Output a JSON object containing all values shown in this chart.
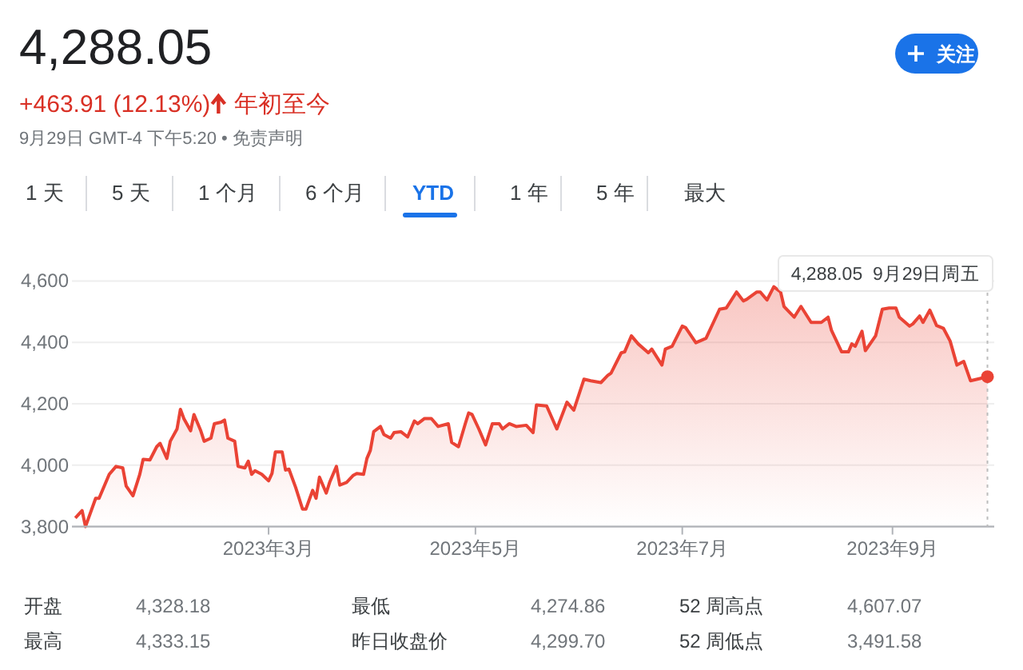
{
  "chart_data": {
    "type": "area",
    "title": "4,288.05",
    "subtitle": "+463.91 (12.13%)",
    "annotations": [
      "年初至今",
      "9月29日 GMT-4 下午5:20 • 免责声明",
      "关注",
      "1 天",
      "5 天",
      "1 个月",
      "6 个月",
      "YTD",
      "1 年",
      "5 年",
      "最大",
      "4,288.05  9月29日周五",
      "开盘",
      "4,328.18",
      "最低",
      "4,274.86",
      "52 周高点",
      "4,607.07",
      "最高",
      "4,333.15",
      "昨日收盘价",
      "4,299.70",
      "52 周低点",
      "3,491.58"
    ],
    "x": [
      "2023-01-03",
      "2023-01-05",
      "2023-01-06",
      "2023-01-09",
      "2023-01-10",
      "2023-01-11",
      "2023-01-13",
      "2023-01-15",
      "2023-01-17",
      "2023-01-18",
      "2023-01-20",
      "2023-01-22",
      "2023-01-23",
      "2023-01-25",
      "2023-01-27",
      "2023-01-28",
      "2023-01-30",
      "2023-01-31",
      "2023-02-02",
      "2023-02-03",
      "2023-02-04",
      "2023-02-06",
      "2023-02-07",
      "2023-02-09",
      "2023-02-10",
      "2023-02-12",
      "2023-02-13",
      "2023-02-15",
      "2023-02-16",
      "2023-02-17",
      "2023-02-19",
      "2023-02-20",
      "2023-02-22",
      "2023-02-23",
      "2023-02-24",
      "2023-02-25",
      "2023-02-27",
      "2023-03-01",
      "2023-03-02",
      "2023-03-03",
      "2023-03-05",
      "2023-03-06",
      "2023-03-07",
      "2023-03-09",
      "2023-03-11",
      "2023-03-12",
      "2023-03-14",
      "2023-03-15",
      "2023-03-16",
      "2023-03-18",
      "2023-03-19",
      "2023-03-21",
      "2023-03-22",
      "2023-03-24",
      "2023-03-26",
      "2023-03-27",
      "2023-03-29",
      "2023-03-30",
      "2023-03-31",
      "2023-04-01",
      "2023-04-03",
      "2023-04-04",
      "2023-04-06",
      "2023-04-07",
      "2023-04-09",
      "2023-04-11",
      "2023-04-13",
      "2023-04-14",
      "2023-04-16",
      "2023-04-18",
      "2023-04-20",
      "2023-04-23",
      "2023-04-24",
      "2023-04-26",
      "2023-04-28",
      "2023-04-29",
      "2023-04-30",
      "2023-05-02",
      "2023-05-04",
      "2023-05-06",
      "2023-05-08",
      "2023-05-09",
      "2023-05-11",
      "2023-05-13",
      "2023-05-16",
      "2023-05-18",
      "2023-05-19",
      "2023-05-22",
      "2023-05-25",
      "2023-05-28",
      "2023-05-30",
      "2023-06-02",
      "2023-06-04",
      "2023-06-07",
      "2023-06-09",
      "2023-06-10",
      "2023-06-13",
      "2023-06-14",
      "2023-06-16",
      "2023-06-18",
      "2023-06-21",
      "2023-06-22",
      "2023-06-25",
      "2023-06-26",
      "2023-06-28",
      "2023-07-01",
      "2023-07-02",
      "2023-07-05",
      "2023-07-08",
      "2023-07-12",
      "2023-07-14",
      "2023-07-17",
      "2023-07-19",
      "2023-07-20",
      "2023-07-23",
      "2023-07-24",
      "2023-07-26",
      "2023-07-28",
      "2023-07-30",
      "2023-07-31",
      "2023-08-03",
      "2023-08-05",
      "2023-08-08",
      "2023-08-11",
      "2023-08-13",
      "2023-08-14",
      "2023-08-17",
      "2023-08-19",
      "2023-08-20",
      "2023-08-21",
      "2023-08-23",
      "2023-08-24",
      "2023-08-27",
      "2023-08-29",
      "2023-08-31",
      "2023-09-02",
      "2023-09-03",
      "2023-09-06",
      "2023-09-07",
      "2023-09-09",
      "2023-09-10",
      "2023-09-12",
      "2023-09-14",
      "2023-09-16",
      "2023-09-18",
      "2023-09-20",
      "2023-09-22",
      "2023-09-24",
      "2023-09-26",
      "2023-09-29"
    ],
    "series": [
      {
        "color": "#ea4335",
        "values": [
          3828,
          3852,
          3800,
          3892,
          3892,
          3918,
          3970,
          3996,
          3991,
          3932,
          3900,
          3970,
          4019,
          4017,
          4060,
          4071,
          4022,
          4078,
          4118,
          4182,
          4152,
          4112,
          4165,
          4112,
          4078,
          4088,
          4135,
          4140,
          4147,
          4088,
          4078,
          3996,
          3991,
          4013,
          3970,
          3982,
          3970,
          3949,
          3973,
          4043,
          4043,
          3984,
          3987,
          3927,
          3857,
          3857,
          3918,
          3892,
          3961,
          3909,
          3944,
          3996,
          3935,
          3944,
          3967,
          3973,
          3970,
          4022,
          4048,
          4109,
          4126,
          4100,
          4088,
          4106,
          4109,
          4092,
          4144,
          4135,
          4152,
          4152,
          4126,
          4135,
          4074,
          4060,
          4135,
          4170,
          4165,
          4118,
          4066,
          4135,
          4135,
          4118,
          4135,
          4126,
          4130,
          4106,
          4196,
          4193,
          4118,
          4205,
          4179,
          4280,
          4275,
          4269,
          4292,
          4300,
          4366,
          4369,
          4421,
          4395,
          4366,
          4378,
          4326,
          4378,
          4387,
          4453,
          4448,
          4399,
          4413,
          4508,
          4512,
          4564,
          4535,
          4540,
          4564,
          4564,
          4538,
          4581,
          4564,
          4517,
          4482,
          4517,
          4465,
          4465,
          4482,
          4439,
          4369,
          4369,
          4395,
          4387,
          4436,
          4373,
          4421,
          4508,
          4512,
          4512,
          4482,
          4453,
          4460,
          4486,
          4465,
          4505,
          4455,
          4446,
          4404,
          4326,
          4338,
          4275,
          4280,
          4288
        ]
      }
    ],
    "xlim": [
      "2023-01-02",
      "2023-10-01"
    ],
    "xticks": [
      {
        "value": "2023-03-01",
        "label": "2023年3月"
      },
      {
        "value": "2023-05-01",
        "label": "2023年5月"
      },
      {
        "value": "2023-07-01",
        "label": "2023年7月"
      },
      {
        "value": "2023-09-01",
        "label": "2023年9月"
      }
    ],
    "ylim": [
      3800,
      4600
    ],
    "yticks": [
      {
        "value": 3800,
        "label": "3,800"
      },
      {
        "value": 4000,
        "label": "4,000"
      },
      {
        "value": 4200,
        "label": "4,200"
      },
      {
        "value": 4400,
        "label": "4,400"
      },
      {
        "value": 4600,
        "label": "4,600"
      }
    ],
    "ref_lines": [
      {
        "axis": "x",
        "value": "2023-09-29",
        "color": "#bdbdbd",
        "line_style": "dotted"
      }
    ],
    "grid": "y",
    "marker": "none",
    "line_style": "solid"
  }
}
